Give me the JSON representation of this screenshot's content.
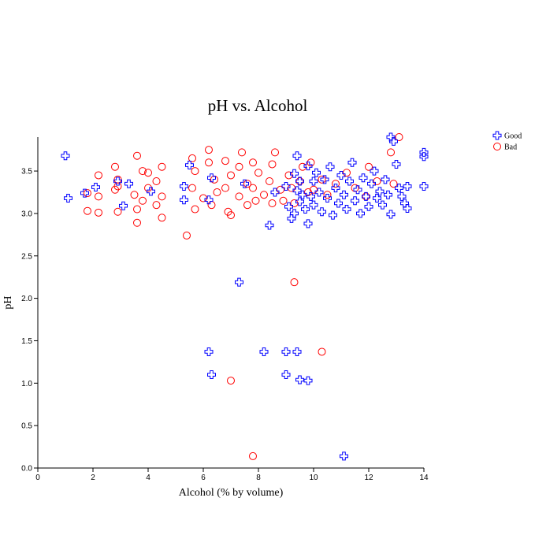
{
  "chart_data": {
    "type": "scatter",
    "title": "pH vs. Alcohol",
    "xlabel": "Alcohol (% by volume)",
    "ylabel": "pH",
    "xlim": [
      0,
      14
    ],
    "ylim": [
      0,
      3.9
    ],
    "xticks": [
      0,
      2,
      4,
      6,
      8,
      10,
      12,
      14
    ],
    "yticks": [
      0.0,
      0.5,
      1.0,
      1.5,
      2.0,
      2.5,
      3.0,
      3.5
    ],
    "grid": false,
    "legend_position": "top-right",
    "series": [
      {
        "name": "Good",
        "marker": "plus",
        "color": "#0000ff",
        "points": [
          [
            1.0,
            3.68
          ],
          [
            1.1,
            3.18
          ],
          [
            1.7,
            3.24
          ],
          [
            2.1,
            3.31
          ],
          [
            2.9,
            3.38
          ],
          [
            3.1,
            3.09
          ],
          [
            3.3,
            3.35
          ],
          [
            4.1,
            3.26
          ],
          [
            5.3,
            3.32
          ],
          [
            5.3,
            3.16
          ],
          [
            5.5,
            3.57
          ],
          [
            6.2,
            3.16
          ],
          [
            6.3,
            3.42
          ],
          [
            7.5,
            3.35
          ],
          [
            8.4,
            2.86
          ],
          [
            8.6,
            3.25
          ],
          [
            9.0,
            3.32
          ],
          [
            9.1,
            3.08
          ],
          [
            9.2,
            2.94
          ],
          [
            9.3,
            3.0
          ],
          [
            9.3,
            3.47
          ],
          [
            9.4,
            3.27
          ],
          [
            9.4,
            3.68
          ],
          [
            9.5,
            3.14
          ],
          [
            9.5,
            3.38
          ],
          [
            9.6,
            3.22
          ],
          [
            9.7,
            3.05
          ],
          [
            9.8,
            3.56
          ],
          [
            9.8,
            2.88
          ],
          [
            9.9,
            3.2
          ],
          [
            10.0,
            3.38
          ],
          [
            10.0,
            3.1
          ],
          [
            10.1,
            3.48
          ],
          [
            10.2,
            3.25
          ],
          [
            10.3,
            3.02
          ],
          [
            10.4,
            3.4
          ],
          [
            10.5,
            3.18
          ],
          [
            10.6,
            3.55
          ],
          [
            10.7,
            2.98
          ],
          [
            10.8,
            3.3
          ],
          [
            10.9,
            3.12
          ],
          [
            11.0,
            3.45
          ],
          [
            11.1,
            3.22
          ],
          [
            11.2,
            3.05
          ],
          [
            11.3,
            3.38
          ],
          [
            11.4,
            3.6
          ],
          [
            11.5,
            3.15
          ],
          [
            11.6,
            3.28
          ],
          [
            11.7,
            3.0
          ],
          [
            11.8,
            3.42
          ],
          [
            11.9,
            3.2
          ],
          [
            12.0,
            3.08
          ],
          [
            12.1,
            3.35
          ],
          [
            12.2,
            3.5
          ],
          [
            12.3,
            3.18
          ],
          [
            12.4,
            3.26
          ],
          [
            12.5,
            3.1
          ],
          [
            12.6,
            3.4
          ],
          [
            12.7,
            3.22
          ],
          [
            12.8,
            2.99
          ],
          [
            12.8,
            3.9
          ],
          [
            12.9,
            3.85
          ],
          [
            13.0,
            3.58
          ],
          [
            13.1,
            3.3
          ],
          [
            13.2,
            3.2
          ],
          [
            13.3,
            3.12
          ],
          [
            13.4,
            3.06
          ],
          [
            13.4,
            3.32
          ],
          [
            14.0,
            3.72
          ],
          [
            14.0,
            3.67
          ],
          [
            14.0,
            3.32
          ],
          [
            6.2,
            1.37
          ],
          [
            6.3,
            1.1
          ],
          [
            7.3,
            2.19
          ],
          [
            8.2,
            1.37
          ],
          [
            9.0,
            1.37
          ],
          [
            9.0,
            1.1
          ],
          [
            9.4,
            1.37
          ],
          [
            9.5,
            1.04
          ],
          [
            9.8,
            1.03
          ],
          [
            11.1,
            0.14
          ]
        ]
      },
      {
        "name": "Bad",
        "marker": "circle",
        "color": "#ff0000",
        "points": [
          [
            1.8,
            3.24
          ],
          [
            1.8,
            3.03
          ],
          [
            2.2,
            3.45
          ],
          [
            2.2,
            3.2
          ],
          [
            2.2,
            3.01
          ],
          [
            2.8,
            3.55
          ],
          [
            2.8,
            3.28
          ],
          [
            2.9,
            3.02
          ],
          [
            2.9,
            3.4
          ],
          [
            3.5,
            3.22
          ],
          [
            3.6,
            3.68
          ],
          [
            3.6,
            2.89
          ],
          [
            3.6,
            3.05
          ],
          [
            3.8,
            3.5
          ],
          [
            3.8,
            3.15
          ],
          [
            4.0,
            3.48
          ],
          [
            4.0,
            3.3
          ],
          [
            4.3,
            3.1
          ],
          [
            4.3,
            3.38
          ],
          [
            4.5,
            3.55
          ],
          [
            4.5,
            2.95
          ],
          [
            4.5,
            3.2
          ],
          [
            5.4,
            2.74
          ],
          [
            5.6,
            3.65
          ],
          [
            5.6,
            3.3
          ],
          [
            5.7,
            3.05
          ],
          [
            5.7,
            3.5
          ],
          [
            6.0,
            3.18
          ],
          [
            6.2,
            3.75
          ],
          [
            6.2,
            3.6
          ],
          [
            6.3,
            3.1
          ],
          [
            6.4,
            3.4
          ],
          [
            6.5,
            3.25
          ],
          [
            6.8,
            3.62
          ],
          [
            6.8,
            3.3
          ],
          [
            6.9,
            3.02
          ],
          [
            7.0,
            2.98
          ],
          [
            7.0,
            3.45
          ],
          [
            7.3,
            3.55
          ],
          [
            7.3,
            3.2
          ],
          [
            7.4,
            3.72
          ],
          [
            7.6,
            3.1
          ],
          [
            7.6,
            3.35
          ],
          [
            7.8,
            3.6
          ],
          [
            7.8,
            3.3
          ],
          [
            7.9,
            3.15
          ],
          [
            8.0,
            3.48
          ],
          [
            8.2,
            3.22
          ],
          [
            8.4,
            3.38
          ],
          [
            8.5,
            3.58
          ],
          [
            8.5,
            3.12
          ],
          [
            8.6,
            3.72
          ],
          [
            8.8,
            3.28
          ],
          [
            8.9,
            3.15
          ],
          [
            9.1,
            3.45
          ],
          [
            9.2,
            3.3
          ],
          [
            9.3,
            3.12
          ],
          [
            9.5,
            3.38
          ],
          [
            9.6,
            3.55
          ],
          [
            9.8,
            3.25
          ],
          [
            9.9,
            3.6
          ],
          [
            10.0,
            3.28
          ],
          [
            10.3,
            3.4
          ],
          [
            10.5,
            3.22
          ],
          [
            10.8,
            3.35
          ],
          [
            11.2,
            3.48
          ],
          [
            11.5,
            3.3
          ],
          [
            11.9,
            3.2
          ],
          [
            12.0,
            3.55
          ],
          [
            12.3,
            3.38
          ],
          [
            12.8,
            3.72
          ],
          [
            12.9,
            3.35
          ],
          [
            13.1,
            3.9
          ],
          [
            2.9,
            3.32
          ],
          [
            7.0,
            1.03
          ],
          [
            9.3,
            2.19
          ],
          [
            10.3,
            1.37
          ],
          [
            7.8,
            0.14
          ]
        ]
      }
    ]
  }
}
